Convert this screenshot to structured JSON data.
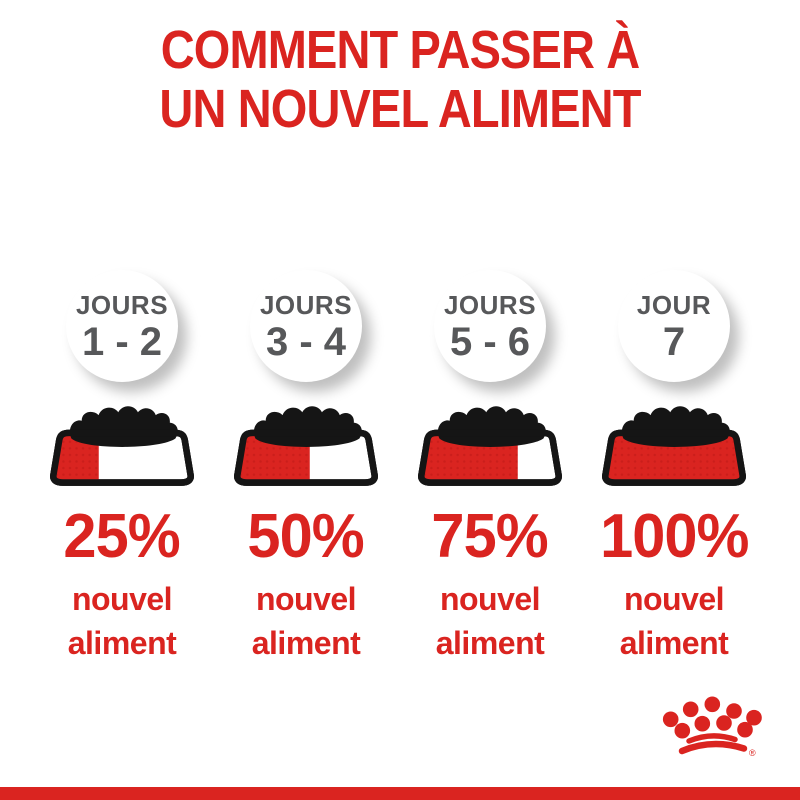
{
  "title": {
    "line1": "COMMENT PASSER À",
    "line2": "UN NOUVEL ALIMENT"
  },
  "columns": [
    {
      "day_label": "JOURS",
      "day_numbers": "1 - 2",
      "fill_percent": 25,
      "percent_label": "25%",
      "caption_line1": "nouvel",
      "caption_line2": "aliment"
    },
    {
      "day_label": "JOURS",
      "day_numbers": "3 - 4",
      "fill_percent": 50,
      "percent_label": "50%",
      "caption_line1": "nouvel",
      "caption_line2": "aliment"
    },
    {
      "day_label": "JOURS",
      "day_numbers": "5 - 6",
      "fill_percent": 75,
      "percent_label": "75%",
      "caption_line1": "nouvel",
      "caption_line2": "aliment"
    },
    {
      "day_label": "JOUR",
      "day_numbers": "7",
      "fill_percent": 100,
      "percent_label": "100%",
      "caption_line1": "nouvel",
      "caption_line2": "aliment"
    }
  ],
  "logo": {
    "registered_symbol": "®"
  },
  "colors": {
    "brand_red": "#da2420",
    "red_texture_dark": "#a81414",
    "day_text_gray": "#57585a",
    "kibble_black": "#151515",
    "background": "#ffffff"
  }
}
